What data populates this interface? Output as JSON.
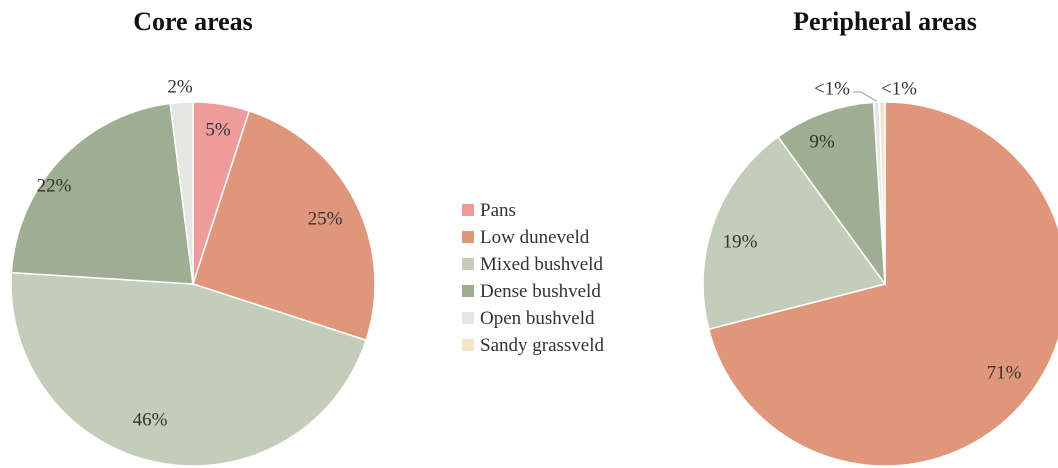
{
  "legend": {
    "items": [
      {
        "label": "Pans",
        "color": "#f09b9b"
      },
      {
        "label": "Low duneveld",
        "color": "#e0967a"
      },
      {
        "label": "Mixed bushveld",
        "color": "#c3cdb9"
      },
      {
        "label": "Dense bushveld",
        "color": "#9fae92"
      },
      {
        "label": "Open bushveld",
        "color": "#e6e6e3"
      },
      {
        "label": "Sandy grassveld",
        "color": "#f8e2c9"
      }
    ]
  },
  "chart_data": [
    {
      "type": "pie",
      "title": "Core areas",
      "categories": [
        "Pans",
        "Low duneveld",
        "Mixed bushveld",
        "Dense bushveld",
        "Open bushveld"
      ],
      "values": [
        5,
        25,
        46,
        22,
        2
      ],
      "labels": [
        "5%",
        "25%",
        "46%",
        "22%",
        "2%"
      ],
      "colors": [
        "#f09b9b",
        "#e0967a",
        "#c3cdb9",
        "#9fae92",
        "#e6e6e3"
      ]
    },
    {
      "type": "pie",
      "title": "Peripheral areas",
      "categories": [
        "Low duneveld",
        "Mixed bushveld",
        "Dense bushveld",
        "Open bushveld",
        "Sandy grassveld"
      ],
      "values": [
        71,
        19,
        9,
        0.5,
        0.5
      ],
      "labels": [
        "71%",
        "19%",
        "9%",
        "<1%",
        "<1%"
      ],
      "colors": [
        "#e0967a",
        "#c3cdb9",
        "#9fae92",
        "#e6e6e3",
        "#f8e2c9"
      ]
    }
  ]
}
